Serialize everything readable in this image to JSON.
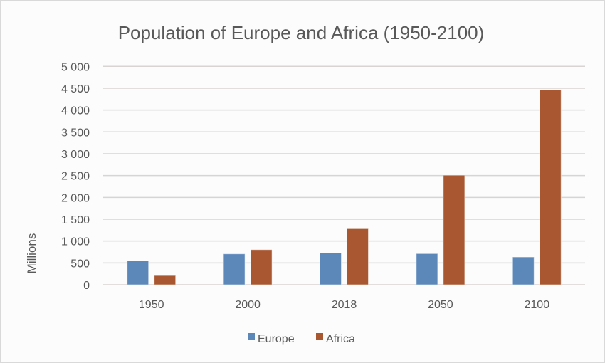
{
  "chart_data": {
    "type": "bar",
    "title": "Population of Europe and Africa (1950-2100)",
    "xlabel": "",
    "ylabel": "Millions",
    "categories": [
      "1950",
      "2000",
      "2018",
      "2050",
      "2100"
    ],
    "series": [
      {
        "name": "Europe",
        "color": "#5b87b9",
        "values": [
          547,
          706,
          728,
          712,
          635
        ]
      },
      {
        "name": "Africa",
        "color": "#a85731",
        "values": [
          210,
          803,
          1282,
          2508,
          4462
        ]
      }
    ],
    "ylim": [
      0,
      5000
    ],
    "yticks": [
      0,
      500,
      1000,
      1500,
      2000,
      2500,
      3000,
      3500,
      4000,
      4500,
      5000
    ],
    "ytick_labels": [
      "0",
      "500",
      "1 000",
      "1 500",
      "2 000",
      "2 500",
      "3 000",
      "3 500",
      "4 000",
      "4 500",
      "5 000"
    ],
    "grid": true,
    "legend_position": "bottom"
  }
}
